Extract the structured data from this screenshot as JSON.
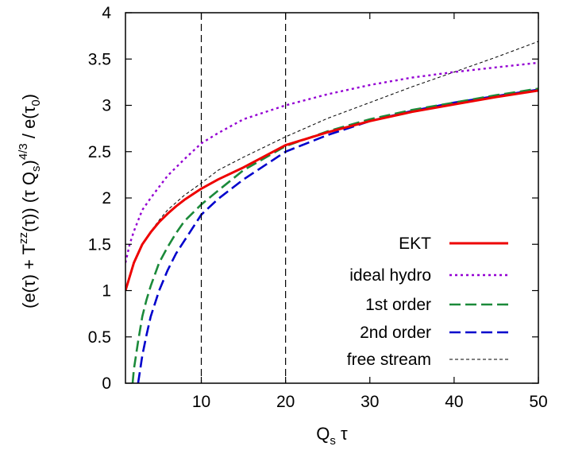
{
  "chart_data": {
    "type": "line",
    "xlabel": {
      "base": "Q",
      "sub": "s",
      "rest": " τ"
    },
    "ylabel": {
      "p1": "(e(τ) + T",
      "sup1": "zz",
      "p2": "(τ)) (τ Q",
      "sub1": "s",
      "p3": ")",
      "sup2": "4/3",
      "p4": " / e(τ",
      "sub2": "0",
      "p5": ")"
    },
    "xlim": [
      1,
      50
    ],
    "ylim": [
      0,
      4
    ],
    "xticks": [
      10,
      20,
      30,
      40,
      50
    ],
    "yticks": [
      0,
      0.5,
      1,
      1.5,
      2,
      2.5,
      3,
      3.5,
      4
    ],
    "ytick_labels": [
      "0",
      "0.5",
      "1",
      "1.5",
      "2",
      "2.5",
      "3",
      "3.5",
      "4"
    ],
    "vlines": [
      10,
      20
    ],
    "legend_position": "bottom-right",
    "grid": false,
    "series": [
      {
        "name": "EKT",
        "color": "#ee0000",
        "dash": "solid",
        "points": [
          [
            1,
            1.0
          ],
          [
            2,
            1.3
          ],
          [
            3,
            1.5
          ],
          [
            4,
            1.63
          ],
          [
            5,
            1.74
          ],
          [
            6,
            1.83
          ],
          [
            7,
            1.91
          ],
          [
            8,
            1.98
          ],
          [
            10,
            2.1
          ],
          [
            12,
            2.2
          ],
          [
            15,
            2.33
          ],
          [
            20,
            2.57
          ],
          [
            25,
            2.71
          ],
          [
            30,
            2.83
          ],
          [
            35,
            2.93
          ],
          [
            40,
            3.01
          ],
          [
            45,
            3.09
          ],
          [
            50,
            3.16
          ]
        ]
      },
      {
        "name": "ideal hydro",
        "color": "#9400d3",
        "dash": "dot",
        "points": [
          [
            1,
            1.3
          ],
          [
            1.5,
            1.5
          ],
          [
            2,
            1.64
          ],
          [
            3,
            1.87
          ],
          [
            4,
            2.0
          ],
          [
            5,
            2.12
          ],
          [
            6,
            2.24
          ],
          [
            8,
            2.42
          ],
          [
            10,
            2.59
          ],
          [
            12,
            2.7
          ],
          [
            15,
            2.85
          ],
          [
            20,
            3.0
          ],
          [
            25,
            3.12
          ],
          [
            30,
            3.22
          ],
          [
            35,
            3.3
          ],
          [
            40,
            3.36
          ],
          [
            45,
            3.41
          ],
          [
            50,
            3.46
          ]
        ]
      },
      {
        "name": "1st order",
        "color": "#1b8a3a",
        "dash": "dash",
        "points": [
          [
            1.85,
            0
          ],
          [
            2,
            0.15
          ],
          [
            2.5,
            0.45
          ],
          [
            3,
            0.72
          ],
          [
            3.5,
            0.9
          ],
          [
            4,
            1.05
          ],
          [
            5,
            1.3
          ],
          [
            6,
            1.47
          ],
          [
            7,
            1.62
          ],
          [
            8,
            1.75
          ],
          [
            10,
            1.93
          ],
          [
            12,
            2.08
          ],
          [
            15,
            2.3
          ],
          [
            20,
            2.56
          ],
          [
            25,
            2.72
          ],
          [
            30,
            2.85
          ],
          [
            35,
            2.95
          ],
          [
            40,
            3.03
          ],
          [
            45,
            3.11
          ],
          [
            50,
            3.18
          ]
        ]
      },
      {
        "name": "2nd order",
        "color": "#0000cc",
        "dash": "dash",
        "points": [
          [
            2.5,
            0
          ],
          [
            2.75,
            0.15
          ],
          [
            3,
            0.3
          ],
          [
            3.5,
            0.52
          ],
          [
            4,
            0.72
          ],
          [
            5,
            1.0
          ],
          [
            6,
            1.22
          ],
          [
            7,
            1.4
          ],
          [
            8,
            1.54
          ],
          [
            10,
            1.82
          ],
          [
            12,
            1.99
          ],
          [
            15,
            2.2
          ],
          [
            20,
            2.5
          ],
          [
            25,
            2.68
          ],
          [
            30,
            2.83
          ],
          [
            35,
            2.94
          ],
          [
            40,
            3.03
          ],
          [
            45,
            3.1
          ],
          [
            50,
            3.17
          ]
        ]
      },
      {
        "name": "free stream",
        "color": "#000000",
        "dash": "thin-dash",
        "points": [
          [
            1,
            1.0
          ],
          [
            2,
            1.3
          ],
          [
            3,
            1.5
          ],
          [
            4,
            1.64
          ],
          [
            5,
            1.76
          ],
          [
            6,
            1.87
          ],
          [
            8,
            2.03
          ],
          [
            10,
            2.16
          ],
          [
            12,
            2.3
          ],
          [
            15,
            2.44
          ],
          [
            20,
            2.66
          ],
          [
            25,
            2.86
          ],
          [
            30,
            3.03
          ],
          [
            35,
            3.2
          ],
          [
            40,
            3.36
          ],
          [
            45,
            3.52
          ],
          [
            50,
            3.69
          ]
        ]
      }
    ]
  }
}
